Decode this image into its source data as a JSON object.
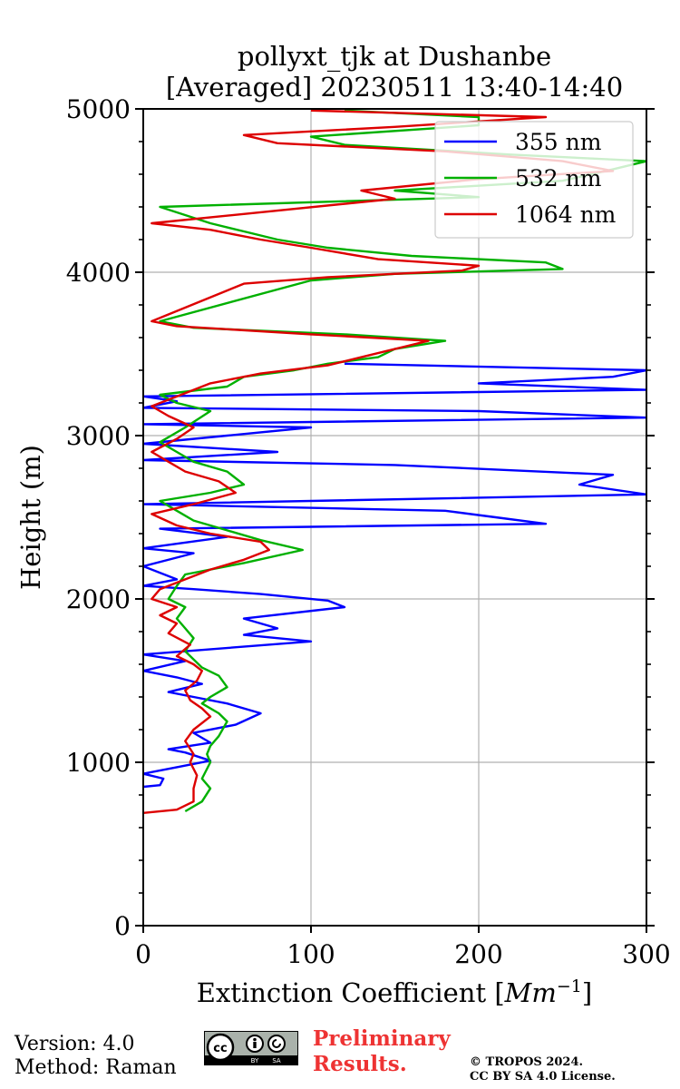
{
  "chart_data": {
    "type": "line",
    "title": [
      "pollyxt_tjk at Dushanbe",
      "[Averaged] 20230511 13:40-14:40"
    ],
    "xlabel": "Extinction Coefficient [Mm⁻¹]",
    "ylabel": "Height (m)",
    "xlim": [
      0,
      300
    ],
    "ylim": [
      0,
      5000
    ],
    "xticks": [
      0,
      100,
      200,
      300
    ],
    "yticks": [
      0,
      1000,
      2000,
      3000,
      4000,
      5000
    ],
    "grid": true,
    "legend_position": "top-right",
    "series": [
      {
        "name": "355 nm",
        "color": "#0000ff",
        "points": [
          [
            0,
            850
          ],
          [
            10,
            860
          ],
          [
            12,
            900
          ],
          [
            0,
            930
          ],
          [
            20,
            970
          ],
          [
            40,
            1010
          ],
          [
            25,
            1060
          ],
          [
            15,
            1080
          ],
          [
            40,
            1120
          ],
          [
            30,
            1180
          ],
          [
            55,
            1230
          ],
          [
            70,
            1300
          ],
          [
            50,
            1360
          ],
          [
            30,
            1400
          ],
          [
            15,
            1430
          ],
          [
            35,
            1480
          ],
          [
            20,
            1520
          ],
          [
            0,
            1560
          ],
          [
            25,
            1620
          ],
          [
            0,
            1660
          ],
          [
            100,
            1740
          ],
          [
            60,
            1780
          ],
          [
            80,
            1820
          ],
          [
            60,
            1880
          ],
          [
            120,
            1950
          ],
          [
            110,
            1990
          ],
          [
            70,
            2030
          ],
          [
            30,
            2060
          ],
          [
            0,
            2080
          ],
          [
            20,
            2120
          ],
          [
            0,
            2200
          ],
          [
            30,
            2280
          ],
          [
            0,
            2310
          ],
          [
            50,
            2380
          ],
          [
            10,
            2430
          ],
          [
            240,
            2460
          ],
          [
            210,
            2500
          ],
          [
            180,
            2540
          ],
          [
            0,
            2580
          ],
          [
            300,
            2640
          ],
          [
            260,
            2700
          ],
          [
            280,
            2760
          ],
          [
            150,
            2820
          ],
          [
            0,
            2850
          ],
          [
            80,
            2900
          ],
          [
            0,
            2950
          ],
          [
            50,
            3000
          ],
          [
            100,
            3050
          ],
          [
            0,
            3070
          ],
          [
            300,
            3110
          ],
          [
            200,
            3150
          ],
          [
            0,
            3170
          ],
          [
            20,
            3210
          ],
          [
            0,
            3240
          ],
          [
            300,
            3280
          ],
          [
            200,
            3320
          ],
          [
            280,
            3360
          ],
          [
            300,
            3400
          ],
          [
            120,
            3440
          ]
        ]
      },
      {
        "name": "532 nm",
        "color": "#00b000",
        "points": [
          [
            25,
            700
          ],
          [
            35,
            760
          ],
          [
            40,
            840
          ],
          [
            35,
            900
          ],
          [
            40,
            1000
          ],
          [
            38,
            1050
          ],
          [
            40,
            1100
          ],
          [
            45,
            1160
          ],
          [
            50,
            1250
          ],
          [
            45,
            1300
          ],
          [
            35,
            1360
          ],
          [
            40,
            1400
          ],
          [
            50,
            1460
          ],
          [
            45,
            1530
          ],
          [
            35,
            1580
          ],
          [
            30,
            1630
          ],
          [
            25,
            1680
          ],
          [
            30,
            1760
          ],
          [
            25,
            1820
          ],
          [
            20,
            1880
          ],
          [
            25,
            1950
          ],
          [
            15,
            2000
          ],
          [
            20,
            2080
          ],
          [
            25,
            2150
          ],
          [
            60,
            2220
          ],
          [
            95,
            2300
          ],
          [
            70,
            2360
          ],
          [
            50,
            2420
          ],
          [
            30,
            2480
          ],
          [
            20,
            2540
          ],
          [
            10,
            2600
          ],
          [
            40,
            2650
          ],
          [
            60,
            2700
          ],
          [
            50,
            2780
          ],
          [
            30,
            2840
          ],
          [
            20,
            2900
          ],
          [
            10,
            2960
          ],
          [
            25,
            3050
          ],
          [
            40,
            3150
          ],
          [
            20,
            3200
          ],
          [
            10,
            3250
          ],
          [
            50,
            3300
          ],
          [
            60,
            3360
          ],
          [
            90,
            3400
          ],
          [
            110,
            3440
          ],
          [
            140,
            3480
          ],
          [
            150,
            3530
          ],
          [
            180,
            3580
          ],
          [
            120,
            3620
          ],
          [
            30,
            3660
          ],
          [
            10,
            3700
          ],
          [
            100,
            3950
          ],
          [
            150,
            3990
          ],
          [
            250,
            4020
          ],
          [
            240,
            4060
          ],
          [
            160,
            4100
          ],
          [
            110,
            4150
          ],
          [
            80,
            4200
          ],
          [
            60,
            4250
          ],
          [
            40,
            4300
          ],
          [
            10,
            4400
          ],
          [
            200,
            4460
          ],
          [
            150,
            4500
          ],
          [
            250,
            4560
          ],
          [
            280,
            4630
          ],
          [
            300,
            4680
          ],
          [
            220,
            4720
          ],
          [
            120,
            4780
          ],
          [
            100,
            4830
          ],
          [
            200,
            4900
          ],
          [
            200,
            4950
          ],
          [
            120,
            4990
          ]
        ]
      },
      {
        "name": "1064 nm",
        "color": "#dd0000",
        "points": [
          [
            0,
            690
          ],
          [
            20,
            710
          ],
          [
            30,
            760
          ],
          [
            30,
            840
          ],
          [
            32,
            920
          ],
          [
            28,
            1000
          ],
          [
            30,
            1050
          ],
          [
            25,
            1130
          ],
          [
            30,
            1200
          ],
          [
            40,
            1280
          ],
          [
            35,
            1330
          ],
          [
            28,
            1380
          ],
          [
            25,
            1440
          ],
          [
            32,
            1500
          ],
          [
            35,
            1560
          ],
          [
            30,
            1600
          ],
          [
            20,
            1650
          ],
          [
            28,
            1720
          ],
          [
            15,
            1790
          ],
          [
            20,
            1850
          ],
          [
            10,
            1900
          ],
          [
            20,
            1950
          ],
          [
            5,
            2000
          ],
          [
            10,
            2060
          ],
          [
            25,
            2120
          ],
          [
            40,
            2180
          ],
          [
            60,
            2240
          ],
          [
            75,
            2300
          ],
          [
            70,
            2350
          ],
          [
            40,
            2400
          ],
          [
            20,
            2450
          ],
          [
            5,
            2520
          ],
          [
            30,
            2580
          ],
          [
            55,
            2650
          ],
          [
            45,
            2720
          ],
          [
            25,
            2780
          ],
          [
            15,
            2840
          ],
          [
            5,
            2900
          ],
          [
            20,
            2980
          ],
          [
            30,
            3050
          ],
          [
            15,
            3120
          ],
          [
            5,
            3180
          ],
          [
            25,
            3260
          ],
          [
            40,
            3320
          ],
          [
            70,
            3380
          ],
          [
            110,
            3430
          ],
          [
            130,
            3480
          ],
          [
            150,
            3530
          ],
          [
            170,
            3580
          ],
          [
            100,
            3620
          ],
          [
            20,
            3670
          ],
          [
            5,
            3700
          ],
          [
            60,
            3930
          ],
          [
            110,
            3970
          ],
          [
            190,
            4010
          ],
          [
            200,
            4040
          ],
          [
            140,
            4080
          ],
          [
            100,
            4150
          ],
          [
            70,
            4200
          ],
          [
            40,
            4260
          ],
          [
            5,
            4300
          ],
          [
            150,
            4450
          ],
          [
            130,
            4500
          ],
          [
            200,
            4570
          ],
          [
            280,
            4620
          ],
          [
            250,
            4680
          ],
          [
            180,
            4740
          ],
          [
            80,
            4790
          ],
          [
            60,
            4840
          ],
          [
            150,
            4890
          ],
          [
            240,
            4950
          ],
          [
            100,
            4990
          ]
        ]
      }
    ]
  },
  "footer": {
    "version": "Version: 4.0",
    "method": "Method: Raman",
    "prelim_line1": "Preliminary",
    "prelim_line2": "Results.",
    "copyright_line1": "© TROPOS 2024.",
    "copyright_line2": "CC BY SA 4.0 License.",
    "license_badge": [
      "cc",
      "BY",
      "SA"
    ]
  }
}
